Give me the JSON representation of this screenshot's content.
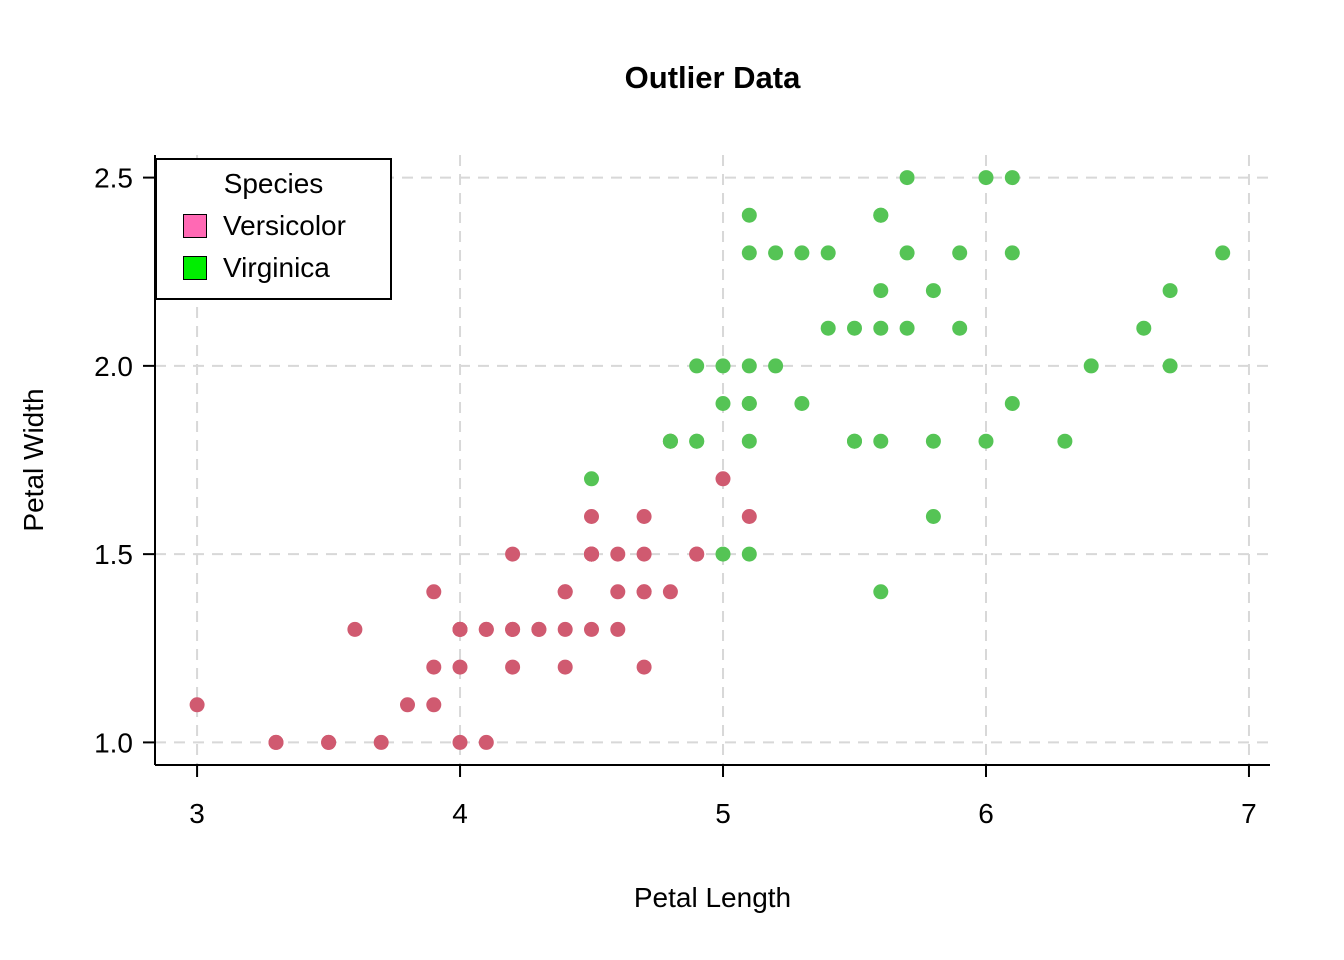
{
  "chart_data": {
    "type": "scatter",
    "title": "Outlier Data",
    "xlabel": "Petal Length",
    "ylabel": "Petal Width",
    "xlim": [
      2.84,
      7.08
    ],
    "ylim": [
      0.94,
      2.56
    ],
    "x_ticks": [
      3,
      4,
      5,
      6,
      7
    ],
    "x_tick_labels": [
      "3",
      "4",
      "5",
      "6",
      "7"
    ],
    "y_ticks": [
      1.0,
      1.5,
      2.0,
      2.5
    ],
    "y_tick_labels": [
      "1.0",
      "1.5",
      "2.0",
      "2.5"
    ],
    "grid": {
      "show": true,
      "style": "dashed",
      "color": "#d8d8d8"
    },
    "legend": {
      "title": "Species",
      "position": "top-left"
    },
    "series": [
      {
        "name": "Versicolor",
        "point_color": "#d05a70",
        "legend_color": "#ff69b4",
        "points": [
          [
            4.7,
            1.4
          ],
          [
            4.5,
            1.5
          ],
          [
            4.9,
            1.5
          ],
          [
            4.0,
            1.3
          ],
          [
            4.6,
            1.5
          ],
          [
            4.5,
            1.3
          ],
          [
            4.7,
            1.6
          ],
          [
            3.3,
            1.0
          ],
          [
            4.6,
            1.3
          ],
          [
            3.9,
            1.4
          ],
          [
            3.5,
            1.0
          ],
          [
            4.2,
            1.5
          ],
          [
            4.0,
            1.0
          ],
          [
            4.7,
            1.4
          ],
          [
            3.6,
            1.3
          ],
          [
            4.4,
            1.4
          ],
          [
            4.5,
            1.5
          ],
          [
            4.1,
            1.0
          ],
          [
            4.5,
            1.5
          ],
          [
            3.9,
            1.1
          ],
          [
            4.8,
            1.8
          ],
          [
            4.0,
            1.3
          ],
          [
            4.9,
            1.5
          ],
          [
            4.7,
            1.2
          ],
          [
            4.3,
            1.3
          ],
          [
            4.4,
            1.4
          ],
          [
            4.8,
            1.4
          ],
          [
            5.0,
            1.7
          ],
          [
            4.5,
            1.5
          ],
          [
            3.5,
            1.0
          ],
          [
            3.8,
            1.1
          ],
          [
            3.7,
            1.0
          ],
          [
            3.9,
            1.2
          ],
          [
            5.1,
            1.6
          ],
          [
            4.5,
            1.5
          ],
          [
            4.5,
            1.6
          ],
          [
            4.7,
            1.5
          ],
          [
            4.4,
            1.3
          ],
          [
            4.1,
            1.3
          ],
          [
            4.0,
            1.3
          ],
          [
            4.4,
            1.2
          ],
          [
            4.6,
            1.4
          ],
          [
            4.0,
            1.2
          ],
          [
            3.3,
            1.0
          ],
          [
            4.2,
            1.3
          ],
          [
            4.2,
            1.2
          ],
          [
            4.2,
            1.3
          ],
          [
            4.3,
            1.3
          ],
          [
            3.0,
            1.1
          ],
          [
            4.1,
            1.3
          ]
        ]
      },
      {
        "name": "Virginica",
        "point_color": "#55c455",
        "legend_color": "#00ee00",
        "points": [
          [
            6.0,
            2.5
          ],
          [
            5.1,
            1.9
          ],
          [
            5.9,
            2.1
          ],
          [
            5.6,
            1.8
          ],
          [
            5.8,
            2.2
          ],
          [
            6.6,
            2.1
          ],
          [
            4.5,
            1.7
          ],
          [
            6.3,
            1.8
          ],
          [
            5.8,
            1.8
          ],
          [
            6.1,
            2.5
          ],
          [
            5.1,
            2.0
          ],
          [
            5.3,
            1.9
          ],
          [
            5.5,
            2.1
          ],
          [
            5.0,
            2.0
          ],
          [
            5.1,
            2.4
          ],
          [
            5.3,
            2.3
          ],
          [
            5.5,
            1.8
          ],
          [
            6.7,
            2.2
          ],
          [
            6.9,
            2.3
          ],
          [
            5.0,
            1.5
          ],
          [
            5.7,
            2.3
          ],
          [
            4.9,
            2.0
          ],
          [
            6.7,
            2.0
          ],
          [
            4.9,
            1.8
          ],
          [
            5.7,
            2.1
          ],
          [
            6.0,
            1.8
          ],
          [
            4.8,
            1.8
          ],
          [
            4.9,
            1.8
          ],
          [
            5.6,
            2.1
          ],
          [
            5.8,
            1.6
          ],
          [
            6.1,
            1.9
          ],
          [
            6.4,
            2.0
          ],
          [
            5.6,
            2.2
          ],
          [
            5.1,
            1.5
          ],
          [
            5.6,
            1.4
          ],
          [
            6.1,
            2.3
          ],
          [
            5.6,
            2.4
          ],
          [
            5.5,
            1.8
          ],
          [
            4.8,
            1.8
          ],
          [
            5.4,
            2.1
          ],
          [
            5.6,
            2.4
          ],
          [
            5.1,
            2.3
          ],
          [
            5.1,
            1.9
          ],
          [
            5.9,
            2.3
          ],
          [
            5.7,
            2.5
          ],
          [
            5.2,
            2.3
          ],
          [
            5.0,
            1.9
          ],
          [
            5.2,
            2.0
          ],
          [
            5.4,
            2.3
          ],
          [
            5.1,
            1.8
          ]
        ]
      }
    ]
  }
}
